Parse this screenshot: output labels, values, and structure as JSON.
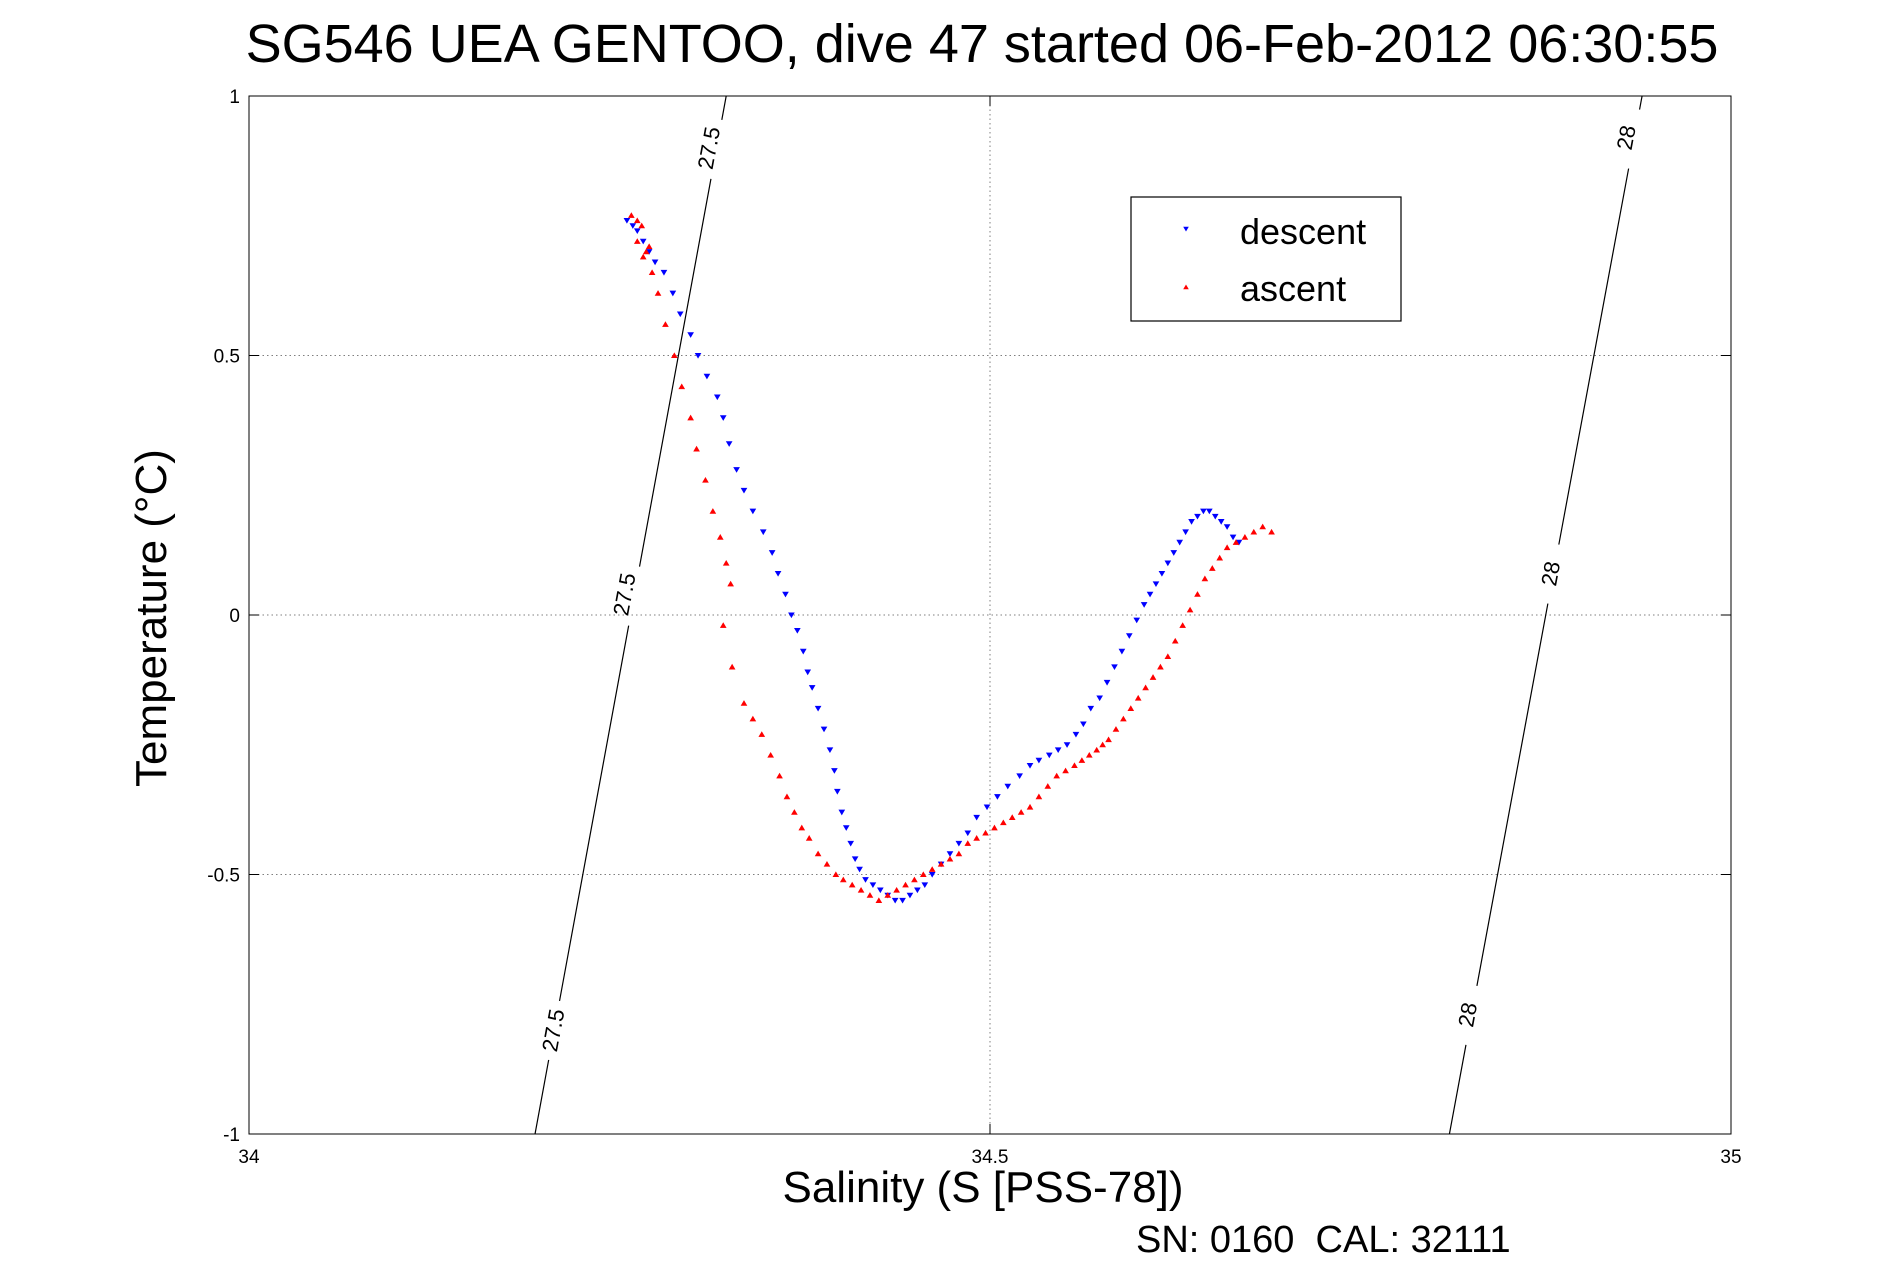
{
  "chart_data": {
    "type": "scatter",
    "title": "SG546 UEA GENTOO, dive 47 started 06-Feb-2012 06:30:55",
    "xlabel": "Salinity (S [PSS-78])",
    "ylabel": "Temperature (°C)",
    "xlim": [
      34,
      35
    ],
    "ylim": [
      -1,
      1
    ],
    "x_ticks": [
      34,
      34.5,
      35
    ],
    "x_tick_labels": [
      "34",
      "34.5",
      "35"
    ],
    "y_ticks": [
      -1,
      -0.5,
      0,
      0.5,
      1
    ],
    "y_tick_labels": [
      "-1",
      "-0.5",
      "0",
      "0.5",
      "1"
    ],
    "grid": true,
    "legend_position": "top-right",
    "footer": "SN: 0160  CAL: 32111",
    "isopycnals": [
      {
        "label": "27.5",
        "x": [
          34.193,
          34.322
        ],
        "y": [
          -1,
          1
        ],
        "label_positions": [
          {
            "x": 34.205,
            "y": -0.8
          },
          {
            "x": 34.253,
            "y": 0.04
          },
          {
            "x": 34.31,
            "y": 0.9
          }
        ]
      },
      {
        "label": "28",
        "x": [
          34.81,
          34.94
        ],
        "y": [
          -1,
          1
        ],
        "label_positions": [
          {
            "x": 34.822,
            "y": -0.77
          },
          {
            "x": 34.878,
            "y": 0.08
          },
          {
            "x": 34.929,
            "y": 0.92
          }
        ]
      }
    ],
    "series": [
      {
        "name": "descent",
        "color": "#0000ff",
        "marker": "triangle-down",
        "x": [
          34.255,
          34.259,
          34.262,
          34.266,
          34.27,
          34.274,
          34.28,
          34.286,
          34.291,
          34.298,
          34.303,
          34.309,
          34.316,
          34.32,
          34.324,
          34.329,
          34.334,
          34.34,
          34.347,
          34.353,
          34.357,
          34.362,
          34.366,
          34.37,
          34.374,
          34.377,
          34.38,
          34.384,
          34.388,
          34.392,
          34.395,
          34.397,
          34.4,
          34.403,
          34.406,
          34.409,
          34.412,
          34.416,
          34.421,
          34.426,
          34.431,
          34.436,
          34.441,
          34.446,
          34.451,
          34.456,
          34.461,
          34.467,
          34.473,
          34.479,
          34.485,
          34.491,
          34.498,
          34.505,
          34.512,
          34.52,
          34.527,
          34.533,
          34.54,
          34.546,
          34.552,
          34.558,
          34.563,
          34.568,
          34.574,
          34.579,
          34.584,
          34.589,
          34.594,
          34.599,
          34.604,
          34.608,
          34.612,
          34.616,
          34.62,
          34.624,
          34.628,
          34.632,
          34.636,
          34.64,
          34.644,
          34.648,
          34.652,
          34.656,
          34.66,
          34.664,
          34.668
        ],
        "y": [
          0.76,
          0.75,
          0.74,
          0.72,
          0.7,
          0.68,
          0.66,
          0.62,
          0.58,
          0.54,
          0.5,
          0.46,
          0.42,
          0.38,
          0.33,
          0.28,
          0.24,
          0.2,
          0.16,
          0.12,
          0.08,
          0.04,
          0.0,
          -0.03,
          -0.07,
          -0.11,
          -0.14,
          -0.18,
          -0.22,
          -0.26,
          -0.3,
          -0.34,
          -0.38,
          -0.41,
          -0.44,
          -0.47,
          -0.49,
          -0.51,
          -0.52,
          -0.53,
          -0.54,
          -0.55,
          -0.55,
          -0.54,
          -0.53,
          -0.52,
          -0.5,
          -0.48,
          -0.46,
          -0.44,
          -0.42,
          -0.39,
          -0.37,
          -0.35,
          -0.33,
          -0.31,
          -0.29,
          -0.28,
          -0.27,
          -0.26,
          -0.25,
          -0.23,
          -0.21,
          -0.18,
          -0.16,
          -0.13,
          -0.1,
          -0.07,
          -0.04,
          -0.01,
          0.02,
          0.04,
          0.06,
          0.08,
          0.1,
          0.12,
          0.14,
          0.16,
          0.18,
          0.19,
          0.2,
          0.2,
          0.19,
          0.18,
          0.17,
          0.15,
          0.14
        ]
      },
      {
        "name": "ascent",
        "color": "#ff0000",
        "marker": "triangle-up",
        "x": [
          34.258,
          34.262,
          34.265,
          34.262,
          34.268,
          34.27,
          34.266,
          34.272,
          34.276,
          34.281,
          34.287,
          34.292,
          34.298,
          34.302,
          34.308,
          34.313,
          34.318,
          34.322,
          34.325,
          34.32,
          34.326,
          34.334,
          34.34,
          34.346,
          34.352,
          34.358,
          34.363,
          34.368,
          34.373,
          34.378,
          34.384,
          34.39,
          34.396,
          34.401,
          34.407,
          34.413,
          34.419,
          34.425,
          34.431,
          34.437,
          34.443,
          34.449,
          34.455,
          34.461,
          34.467,
          34.473,
          34.479,
          34.485,
          34.491,
          34.497,
          34.503,
          34.509,
          34.515,
          34.521,
          34.527,
          34.533,
          34.539,
          34.545,
          34.551,
          34.557,
          34.562,
          34.567,
          34.572,
          34.576,
          34.58,
          34.585,
          34.59,
          34.595,
          34.6,
          34.605,
          34.61,
          34.615,
          34.62,
          34.625,
          34.63,
          34.635,
          34.64,
          34.645,
          34.65,
          34.655,
          34.66,
          34.666,
          34.672,
          34.678,
          34.684,
          34.69
        ],
        "y": [
          0.77,
          0.76,
          0.75,
          0.72,
          0.7,
          0.71,
          0.69,
          0.66,
          0.62,
          0.56,
          0.5,
          0.44,
          0.38,
          0.32,
          0.26,
          0.2,
          0.15,
          0.1,
          0.06,
          -0.02,
          -0.1,
          -0.17,
          -0.2,
          -0.23,
          -0.27,
          -0.31,
          -0.35,
          -0.38,
          -0.41,
          -0.43,
          -0.46,
          -0.48,
          -0.5,
          -0.51,
          -0.52,
          -0.53,
          -0.54,
          -0.55,
          -0.54,
          -0.53,
          -0.52,
          -0.51,
          -0.5,
          -0.49,
          -0.48,
          -0.47,
          -0.46,
          -0.44,
          -0.43,
          -0.42,
          -0.41,
          -0.4,
          -0.39,
          -0.38,
          -0.37,
          -0.35,
          -0.33,
          -0.31,
          -0.3,
          -0.29,
          -0.28,
          -0.27,
          -0.26,
          -0.25,
          -0.24,
          -0.22,
          -0.2,
          -0.18,
          -0.16,
          -0.14,
          -0.12,
          -0.1,
          -0.08,
          -0.05,
          -0.02,
          0.01,
          0.04,
          0.07,
          0.09,
          0.11,
          0.13,
          0.14,
          0.15,
          0.16,
          0.17,
          0.16
        ]
      }
    ]
  }
}
